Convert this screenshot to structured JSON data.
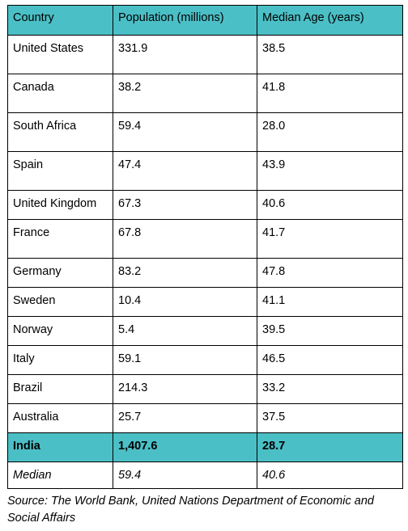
{
  "table": {
    "headers": [
      "Country",
      "Population (millions)",
      "Median Age (years)"
    ],
    "rows": [
      [
        "United States",
        "331.9",
        "38.5"
      ],
      [
        "Canada",
        "38.2",
        "41.8"
      ],
      [
        "South Africa",
        "59.4",
        "28.0"
      ],
      [
        "Spain",
        "47.4",
        "43.9"
      ],
      [
        "United Kingdom",
        "67.3",
        "40.6"
      ],
      [
        "France",
        "67.8",
        "41.7"
      ],
      [
        "Germany",
        "83.2",
        "47.8"
      ],
      [
        "Sweden",
        "10.4",
        "41.1"
      ],
      [
        "Norway",
        "5.4",
        "39.5"
      ],
      [
        "Italy",
        "59.1",
        "46.5"
      ],
      [
        "Brazil",
        "214.3",
        "33.2"
      ],
      [
        "Australia",
        "25.7",
        "37.5"
      ]
    ],
    "highlight_row": [
      "India",
      "1,407.6",
      "28.7"
    ],
    "median_row": [
      "Median",
      "59.4",
      "40.6"
    ],
    "highlight_color": "#4bbfc6"
  },
  "source": "Source: The World Bank, United Nations Department of Economic and Social Affairs"
}
